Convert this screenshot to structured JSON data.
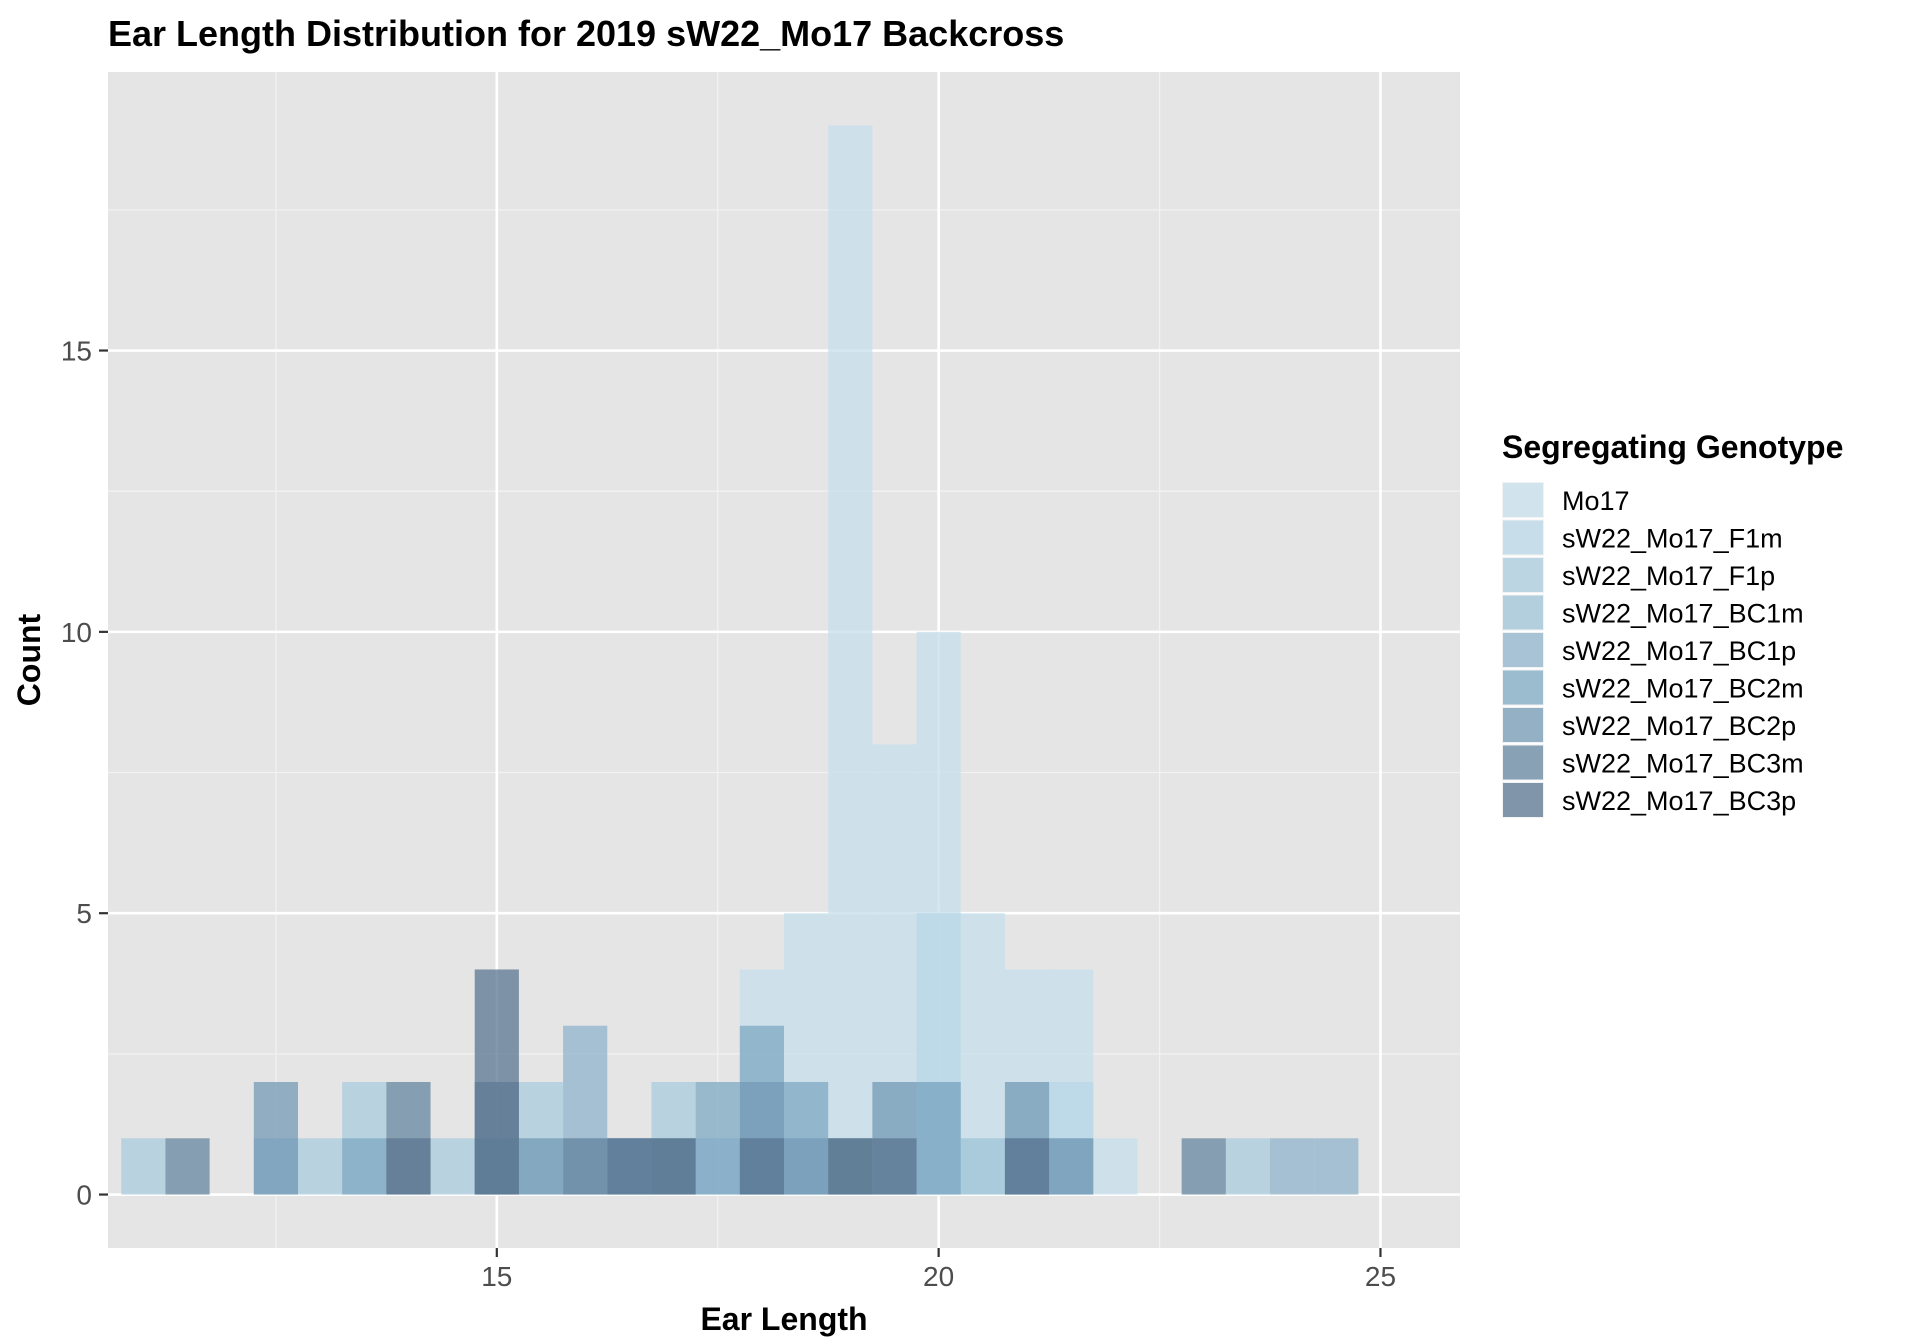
{
  "chart_data": {
    "type": "bar",
    "title": "Ear Length Distribution for 2019 sW22_Mo17 Backcross",
    "xlabel": "Ear Length",
    "ylabel": "Count",
    "xlim": [
      10.6,
      25.9
    ],
    "ylim": [
      -0.95,
      19.95
    ],
    "x_ticks": [
      15,
      20,
      25
    ],
    "y_ticks": [
      0,
      5,
      10,
      15
    ],
    "x_tick_labels": [
      "15",
      "20",
      "25"
    ],
    "y_tick_labels": [
      "0",
      "5",
      "10",
      "15"
    ],
    "grid": true,
    "legend_position": "right",
    "legend_title": "Segregating Genotype",
    "bin_width": 0.5,
    "series": [
      {
        "name": "Mo17",
        "color": "#c5dfec",
        "bins": [
          [
            18.0,
            4
          ],
          [
            18.5,
            5
          ],
          [
            19.0,
            19
          ],
          [
            19.5,
            8
          ],
          [
            20.0,
            10
          ],
          [
            20.5,
            5
          ],
          [
            21.0,
            4
          ],
          [
            21.5,
            4
          ],
          [
            22.0,
            1
          ]
        ]
      },
      {
        "name": "sW22_Mo17_F1m",
        "color": "#b8d6e5",
        "bins": [
          [
            19.0,
            1
          ],
          [
            20.0,
            5
          ],
          [
            21.5,
            2
          ]
        ]
      },
      {
        "name": "sW22_Mo17_F1p",
        "color": "#aacbdd",
        "bins": [
          [
            11.0,
            1
          ],
          [
            13.0,
            1
          ],
          [
            13.5,
            2
          ],
          [
            14.5,
            1
          ],
          [
            15.5,
            2
          ],
          [
            17.0,
            2
          ],
          [
            23.5,
            1
          ]
        ]
      },
      {
        "name": "sW22_Mo17_BC1m",
        "color": "#9ec3d6",
        "bins": [
          [
            12.5,
            1
          ],
          [
            16.0,
            1
          ],
          [
            17.5,
            1
          ],
          [
            20.0,
            2
          ],
          [
            20.5,
            1
          ],
          [
            21.5,
            1
          ]
        ]
      },
      {
        "name": "sW22_Mo17_BC1p",
        "color": "#8fb3cb",
        "bins": [
          [
            16.0,
            3
          ],
          [
            18.0,
            1
          ],
          [
            24.0,
            1
          ],
          [
            24.5,
            1
          ]
        ]
      },
      {
        "name": "sW22_Mo17_BC2m",
        "color": "#7ea8c3",
        "bins": [
          [
            13.5,
            1
          ],
          [
            15.0,
            1
          ],
          [
            16.5,
            1
          ],
          [
            17.5,
            2
          ],
          [
            18.0,
            3
          ],
          [
            18.5,
            2
          ],
          [
            20.0,
            2
          ],
          [
            21.0,
            1
          ]
        ]
      },
      {
        "name": "sW22_Mo17_BC2p",
        "color": "#7399b5",
        "bins": [
          [
            12.5,
            2
          ],
          [
            15.5,
            1
          ],
          [
            16.5,
            1
          ],
          [
            18.0,
            2
          ],
          [
            18.5,
            1
          ],
          [
            19.5,
            2
          ],
          [
            21.0,
            2
          ],
          [
            21.5,
            1
          ]
        ]
      },
      {
        "name": "sW22_Mo17_BC3m",
        "color": "#66859f",
        "bins": [
          [
            11.5,
            1
          ],
          [
            14.0,
            2
          ],
          [
            15.0,
            2
          ],
          [
            16.0,
            1
          ],
          [
            17.0,
            1
          ],
          [
            19.0,
            1
          ],
          [
            23.0,
            1
          ]
        ]
      },
      {
        "name": "sW22_Mo17_BC3p",
        "color": "#5a7590",
        "bins": [
          [
            14.0,
            1
          ],
          [
            15.0,
            4
          ],
          [
            16.5,
            1
          ],
          [
            17.0,
            1
          ],
          [
            18.0,
            1
          ],
          [
            19.0,
            1
          ],
          [
            19.5,
            1
          ],
          [
            21.0,
            1
          ]
        ]
      }
    ]
  }
}
